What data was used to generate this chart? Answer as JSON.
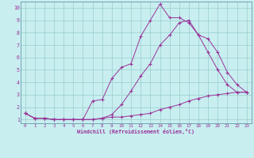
{
  "xlabel": "Windchill (Refroidissement éolien,°C)",
  "background_color": "#c8eef0",
  "grid_color": "#99cccc",
  "line_color": "#993399",
  "xlim": [
    -0.5,
    23.5
  ],
  "ylim": [
    0.7,
    10.5
  ],
  "xticks": [
    0,
    1,
    2,
    3,
    4,
    5,
    6,
    7,
    8,
    9,
    10,
    11,
    12,
    13,
    14,
    15,
    16,
    17,
    18,
    19,
    20,
    21,
    22,
    23
  ],
  "yticks": [
    1,
    2,
    3,
    4,
    5,
    6,
    7,
    8,
    9,
    10
  ],
  "line1_x": [
    0,
    1,
    2,
    3,
    4,
    5,
    6,
    7,
    8,
    9,
    10,
    11,
    12,
    13,
    14,
    15,
    16,
    17,
    18,
    19,
    20,
    21,
    22,
    23
  ],
  "line1_y": [
    1.5,
    1.1,
    1.1,
    1.0,
    1.0,
    1.0,
    1.0,
    1.0,
    1.1,
    1.2,
    1.2,
    1.3,
    1.4,
    1.5,
    1.8,
    2.0,
    2.2,
    2.5,
    2.7,
    2.9,
    3.0,
    3.1,
    3.2,
    3.2
  ],
  "line2_x": [
    0,
    1,
    2,
    3,
    4,
    5,
    6,
    7,
    8,
    9,
    10,
    11,
    12,
    13,
    14,
    15,
    16,
    17,
    18,
    19,
    20,
    21,
    22,
    23
  ],
  "line2_y": [
    1.5,
    1.1,
    1.1,
    1.0,
    1.0,
    1.0,
    1.0,
    2.5,
    2.6,
    4.3,
    5.2,
    5.5,
    7.7,
    9.0,
    10.3,
    9.2,
    9.2,
    8.8,
    7.8,
    7.5,
    6.4,
    4.8,
    3.8,
    3.2
  ],
  "line3_x": [
    0,
    1,
    2,
    3,
    4,
    5,
    6,
    7,
    8,
    9,
    10,
    11,
    12,
    13,
    14,
    15,
    16,
    17,
    18,
    19,
    20,
    21,
    22,
    23
  ],
  "line3_y": [
    1.5,
    1.1,
    1.1,
    1.0,
    1.0,
    1.0,
    1.0,
    1.0,
    1.1,
    1.4,
    2.2,
    3.3,
    4.5,
    5.5,
    7.0,
    7.8,
    8.8,
    9.0,
    7.8,
    6.4,
    5.0,
    3.8,
    3.2,
    3.2
  ]
}
